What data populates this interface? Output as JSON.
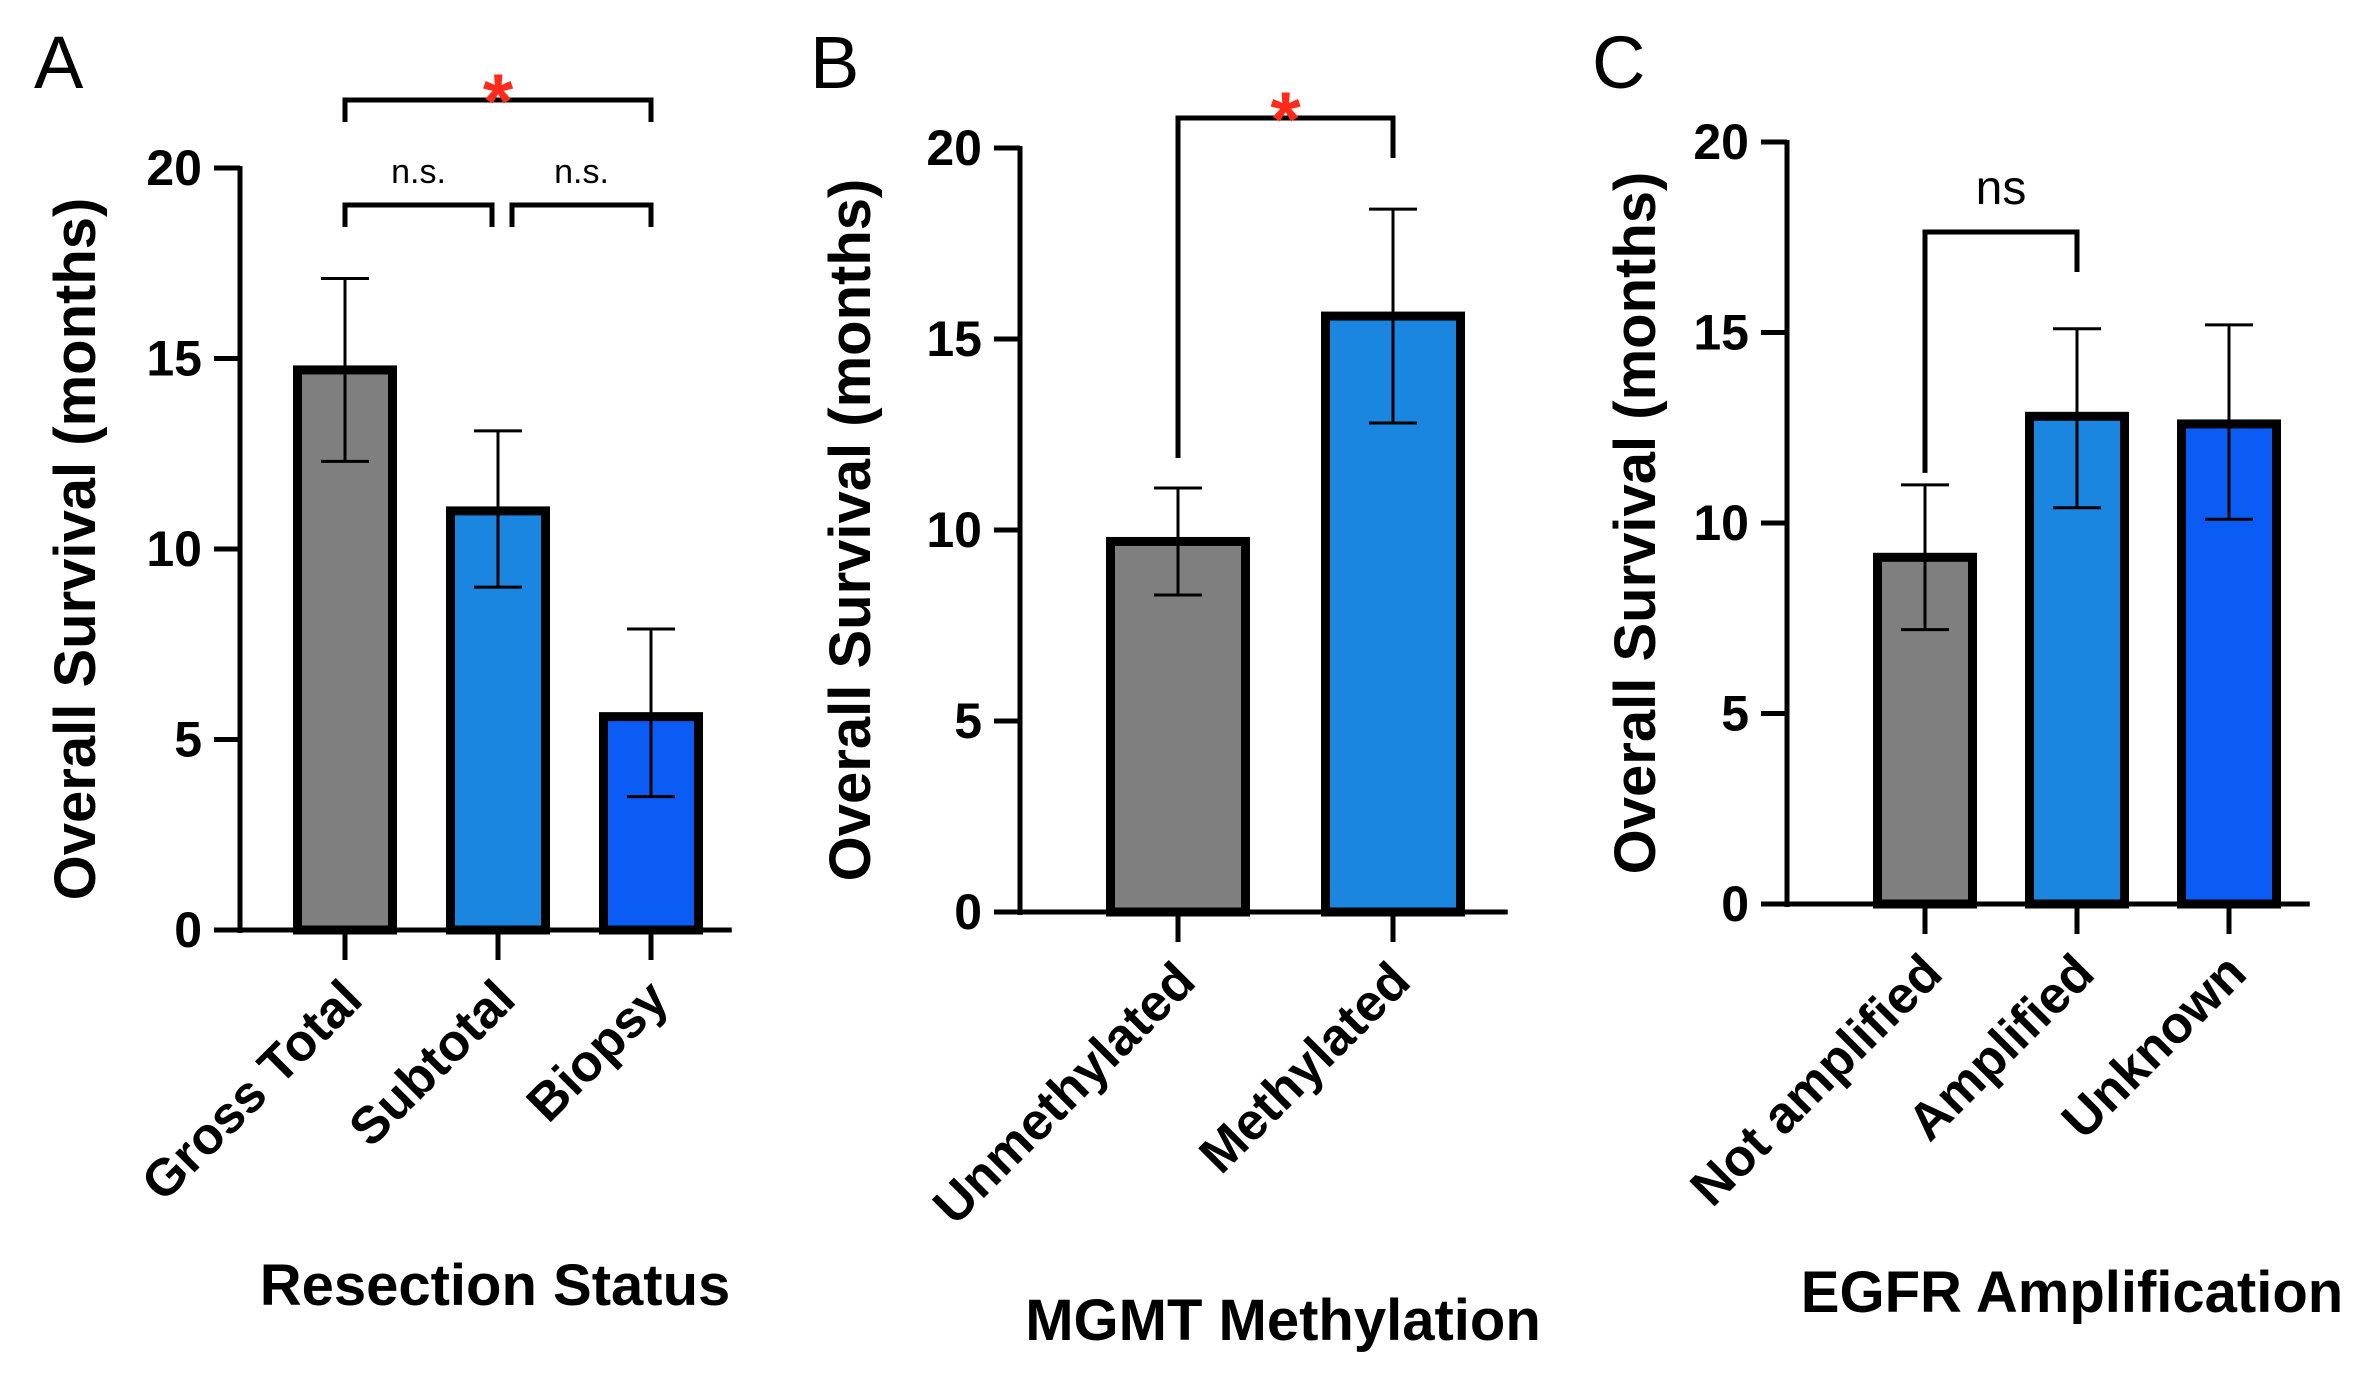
{
  "colors": {
    "gray": "#7f7f7f",
    "light_blue": "#1a86df",
    "bright_blue": "#0a5cf5",
    "significance_star": "#ff2a1a",
    "stroke": "#000000"
  },
  "chart_data": [
    {
      "type": "bar",
      "panel": "A",
      "categories": [
        "Gross Total",
        "Subtotal",
        "Biopsy"
      ],
      "values": [
        14.7,
        11.0,
        5.6
      ],
      "error_low": [
        12.3,
        9.0,
        3.5
      ],
      "error_high": [
        17.1,
        13.1,
        7.9
      ],
      "bar_colors": [
        "#7f7f7f",
        "#1a86df",
        "#0a5cf5"
      ],
      "xlabel": "Resection Status",
      "ylabel": "Overall Survival (months)",
      "ylim": [
        0,
        20
      ],
      "yticks": [
        "0",
        "5",
        "10",
        "15",
        "20"
      ],
      "grid": false,
      "annotations": [
        {
          "from": 0,
          "to": 2,
          "label": "*",
          "style": "star",
          "level": 1
        },
        {
          "from": 0,
          "to": 1,
          "label": "n.s.",
          "style": "small",
          "level": 0
        },
        {
          "from": 1,
          "to": 2,
          "label": "n.s.",
          "style": "small",
          "level": 0
        }
      ]
    },
    {
      "type": "bar",
      "panel": "B",
      "categories": [
        "Unmethylated",
        "Methylated"
      ],
      "values": [
        9.7,
        15.6
      ],
      "error_low": [
        8.3,
        12.8
      ],
      "error_high": [
        11.1,
        18.4
      ],
      "bar_colors": [
        "#7f7f7f",
        "#1a86df"
      ],
      "xlabel": "MGMT Methylation",
      "ylabel": "Overall Survival (months)",
      "ylim": [
        0,
        20
      ],
      "yticks": [
        "0",
        "5",
        "10",
        "15",
        "20"
      ],
      "grid": false,
      "annotations": [
        {
          "from": 0,
          "to": 1,
          "label": "*",
          "style": "star",
          "level": 0
        }
      ]
    },
    {
      "type": "bar",
      "panel": "C",
      "categories": [
        "Not amplified",
        "Amplified",
        "Unknown"
      ],
      "values": [
        9.1,
        12.8,
        12.6
      ],
      "error_low": [
        7.2,
        10.4,
        10.1
      ],
      "error_high": [
        11.0,
        15.1,
        15.2
      ],
      "bar_colors": [
        "#7f7f7f",
        "#1a86df",
        "#0a5cf5"
      ],
      "xlabel": "EGFR Amplification",
      "ylabel": "Overall Survival (months)",
      "ylim": [
        0,
        20
      ],
      "yticks": [
        "0",
        "5",
        "10",
        "15",
        "20"
      ],
      "grid": false,
      "annotations": [
        {
          "from": 0,
          "to": 1,
          "label": "ns",
          "style": "ns",
          "level": 0
        }
      ]
    }
  ]
}
